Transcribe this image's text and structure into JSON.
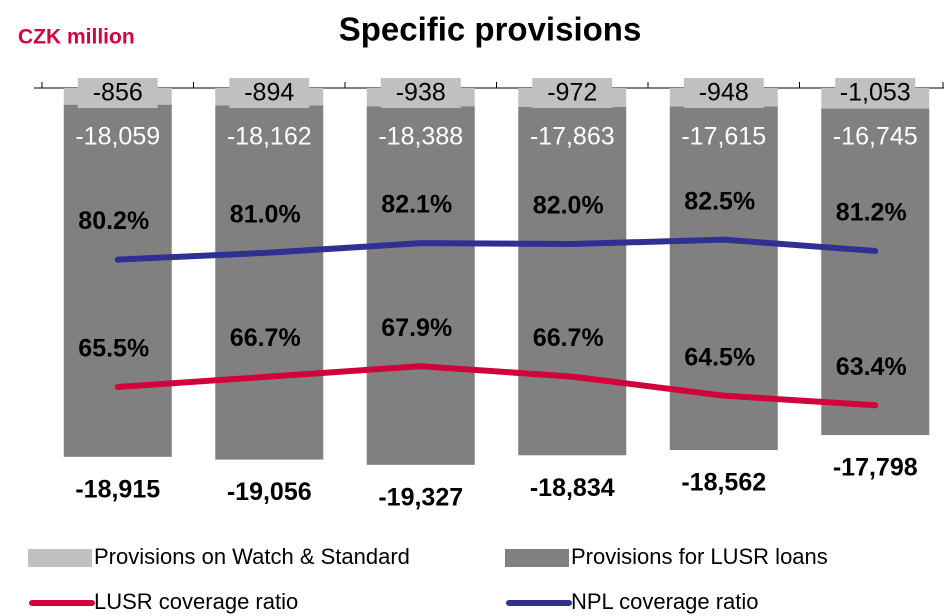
{
  "chart_data": {
    "type": "bar",
    "title": "Specific provisions",
    "subtitle": "CZK million",
    "stacked": true,
    "categories": [
      null,
      null,
      null,
      null,
      null,
      null
    ],
    "ylim": [
      -20000,
      0
    ],
    "y2lim": [
      55,
      100
    ],
    "series": [
      {
        "name": "Provisions on Watch & Standard",
        "type": "bar",
        "color": "#c0c0c0",
        "values": [
          -856,
          -894,
          -938,
          -972,
          -948,
          -1053
        ],
        "value_labels": [
          "-856",
          "-894",
          "-938",
          "-972",
          "-948",
          "-1,053"
        ]
      },
      {
        "name": "Provisions for LUSR loans",
        "type": "bar",
        "color": "#808080",
        "values": [
          -18059,
          -18162,
          -18388,
          -17863,
          -17615,
          -16745
        ],
        "value_labels": [
          "-18,059",
          "-18,162",
          "-18,388",
          "-17,863",
          "-17,615",
          "-16,745"
        ]
      },
      {
        "name": "LUSR coverage ratio",
        "type": "line",
        "axis": "y2",
        "color": "#d0043c",
        "values": [
          65.5,
          66.7,
          67.9,
          66.7,
          64.5,
          63.4
        ],
        "value_labels": [
          "65.5%",
          "66.7%",
          "67.9%",
          "66.7%",
          "64.5%",
          "63.4%"
        ]
      },
      {
        "name": "NPL coverage ratio",
        "type": "line",
        "axis": "y2",
        "color": "#2e3192",
        "values": [
          80.2,
          81.0,
          82.1,
          82.0,
          82.5,
          81.2
        ],
        "value_labels": [
          "80.2%",
          "81.0%",
          "82.1%",
          "82.0%",
          "82.5%",
          "81.2%"
        ]
      }
    ],
    "totals": {
      "values": [
        -18915,
        -19056,
        -19327,
        -18834,
        -18562,
        -17798
      ],
      "value_labels": [
        "-18,915",
        "-19,056",
        "-19,327",
        "-18,834",
        "-18,562",
        "-17,798"
      ]
    }
  }
}
